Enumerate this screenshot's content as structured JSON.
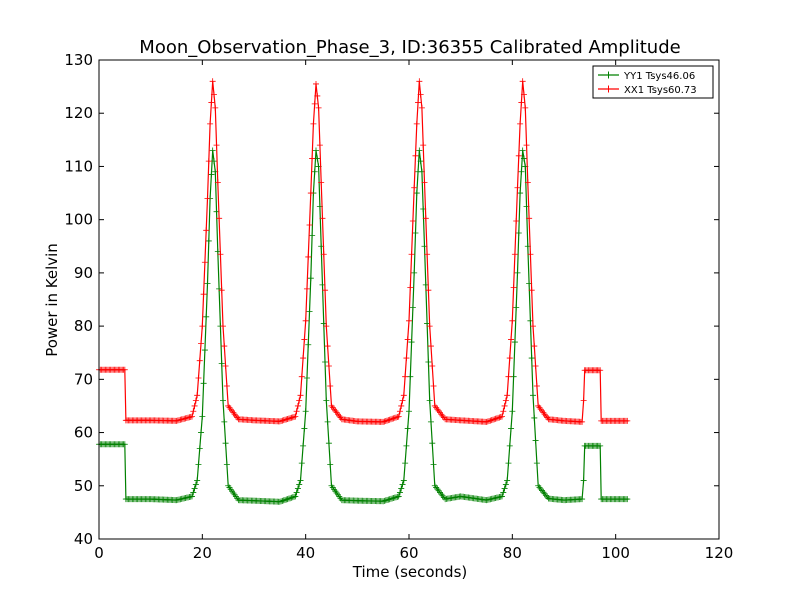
{
  "chart_data": {
    "type": "line",
    "title": "Moon_Observation_Phase_3, ID:36355 Calibrated Amplitude",
    "xlabel": "Time (seconds)",
    "ylabel": "Power in Kelvin",
    "xlim": [
      0,
      120
    ],
    "ylim": [
      40,
      130
    ],
    "xticks": [
      "0",
      "20",
      "40",
      "60",
      "80",
      "100",
      "120"
    ],
    "yticks": [
      "40",
      "50",
      "60",
      "70",
      "80",
      "90",
      "100",
      "110",
      "120",
      "130"
    ],
    "grid": false,
    "legend_position": "top-right",
    "series": [
      {
        "name": "YY1 Tsys46.06",
        "color": "#008000",
        "x": [
          0,
          5,
          5.2,
          10,
          15,
          18,
          19,
          20,
          21,
          21.5,
          22,
          22.5,
          23,
          24,
          25,
          27,
          30,
          35,
          38,
          39,
          40,
          41,
          41.5,
          42,
          42.5,
          43,
          44,
          45,
          47,
          50,
          55,
          58,
          59,
          60,
          61,
          61.5,
          62,
          62.5,
          63,
          64,
          65,
          67,
          70,
          75,
          78,
          79,
          80,
          81,
          81.5,
          82,
          82.5,
          83,
          84,
          85,
          87,
          90,
          93.5,
          93.8,
          94,
          94.2,
          95,
          97,
          97.2,
          100,
          102.5
        ],
        "y": [
          57.8,
          57.8,
          47.5,
          47.5,
          47.3,
          48,
          51,
          63,
          88,
          104,
          113,
          109,
          94,
          66,
          50,
          47.3,
          47.2,
          47.0,
          48,
          51,
          64,
          89,
          105,
          113,
          110,
          95,
          66,
          50,
          47.3,
          47.2,
          47.1,
          48,
          51,
          64,
          90,
          105,
          113,
          109,
          95,
          66,
          50,
          47.5,
          48,
          47.3,
          48,
          51,
          64,
          90,
          105,
          113,
          110,
          95,
          67,
          50,
          47.6,
          47.3,
          47.5,
          51,
          57.5,
          57.5,
          57.5,
          57.5,
          47.5,
          47.5,
          47.5
        ]
      },
      {
        "name": "XX1 Tsys60.73",
        "color": "#ff0000",
        "x": [
          0,
          5,
          5.2,
          10,
          15,
          18,
          19,
          20,
          21,
          21.5,
          22,
          22.5,
          23,
          24,
          25,
          27,
          30,
          35,
          38,
          39,
          40,
          41,
          41.5,
          42,
          42.5,
          43,
          44,
          45,
          47,
          50,
          55,
          58,
          59,
          60,
          61,
          61.5,
          62,
          62.5,
          63,
          64,
          65,
          67,
          70,
          75,
          78,
          79,
          80,
          81,
          81.5,
          82,
          82.5,
          83,
          84,
          85,
          87,
          90,
          93.5,
          93.8,
          94,
          94.2,
          95,
          97,
          97.2,
          100,
          102.5
        ],
        "y": [
          71.8,
          71.8,
          62.3,
          62.3,
          62.2,
          63,
          67,
          80,
          104,
          118,
          126,
          121,
          107,
          80,
          65,
          62.5,
          62.3,
          62.1,
          63,
          67,
          81,
          105,
          118,
          125.5,
          121,
          107,
          80,
          65,
          62.5,
          62.1,
          62.0,
          63,
          67,
          81,
          106,
          118,
          126,
          121,
          107,
          80,
          65,
          62.5,
          62.3,
          62.0,
          63,
          67,
          81,
          106,
          118,
          126,
          121,
          107,
          80,
          65,
          62.5,
          62.2,
          62.0,
          66,
          71.7,
          71.7,
          71.7,
          71.7,
          62.2,
          62.2,
          62.2
        ]
      }
    ]
  }
}
